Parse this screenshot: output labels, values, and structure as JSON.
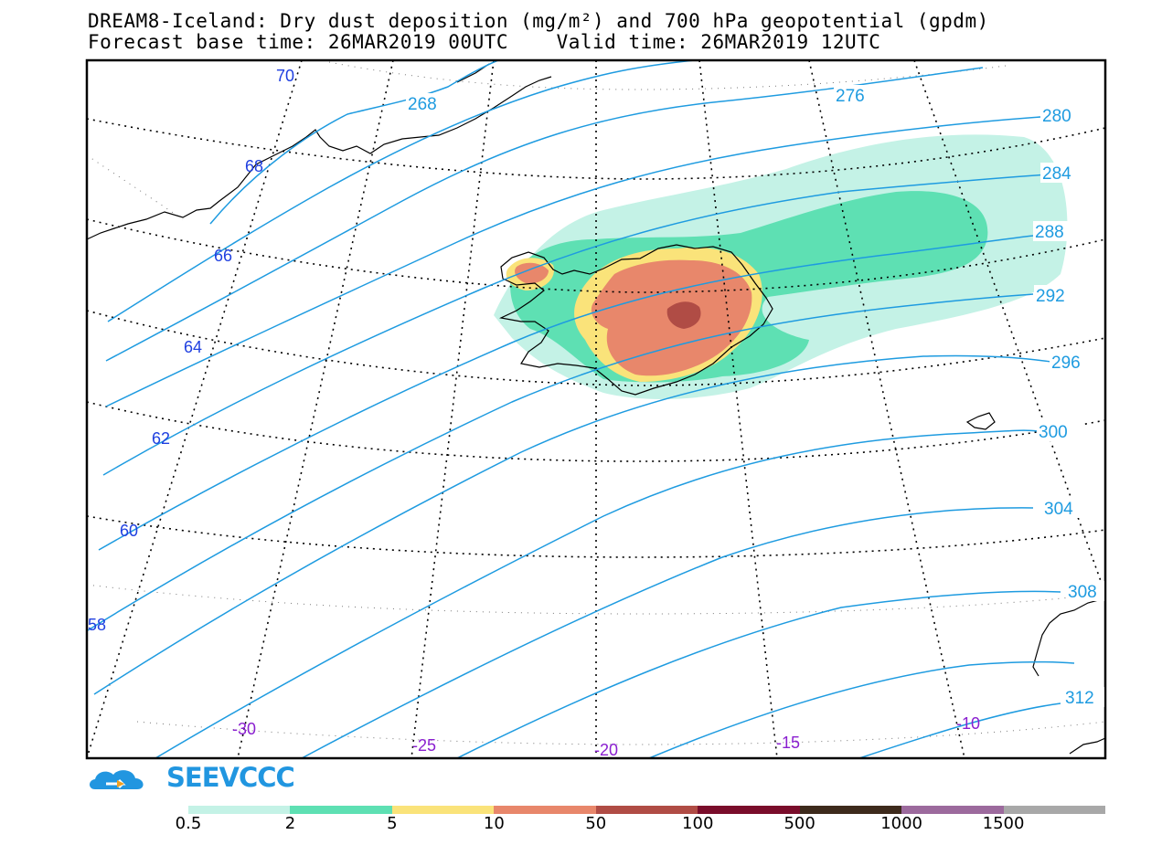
{
  "header": {
    "line1": "DREAM8-Iceland: Dry dust deposition (mg/m²) and 700 hPa geopotential (gpdm)",
    "line2": "Forecast base time: 26MAR2019 00UTC    Valid time: 26MAR2019 12UTC"
  },
  "map": {
    "latitude_labels": [
      "70",
      "68",
      "66",
      "64",
      "62",
      "60",
      "58"
    ],
    "longitude_labels": [
      "-30",
      "-25",
      "-20",
      "-15",
      "-10"
    ],
    "geopotential_labels": [
      "268",
      "276",
      "280",
      "284",
      "288",
      "292",
      "296",
      "300",
      "304",
      "308",
      "312"
    ],
    "contour_color": "#1e9be0",
    "latlon_label_color": "#1f3fe0",
    "lon_label_color": "#8a1fd0"
  },
  "logo": {
    "text": "SEEVCCC",
    "color": "#2196e0"
  },
  "colorbar": {
    "labels": [
      "0.5",
      "2",
      "5",
      "10",
      "50",
      "100",
      "500",
      "1000",
      "1500"
    ],
    "colors": [
      "#c4f2e6",
      "#5ee0b3",
      "#fae37a",
      "#e8876b",
      "#b04c45",
      "#7a0d2b",
      "#3d2a1c",
      "#9c6a9d",
      "#a8a8a8"
    ]
  }
}
